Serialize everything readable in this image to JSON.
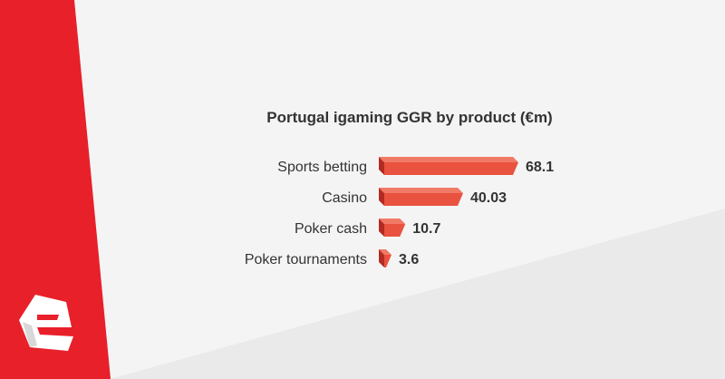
{
  "colors": {
    "accent": "#e8202a",
    "bar_front": "#e9523f",
    "bar_top": "#f17a66",
    "bar_side": "#b32a22",
    "background": "#f4f4f4",
    "background_panel": "#eaeaea",
    "text": "#333333"
  },
  "logo": {
    "icon": "e-letter-logo-icon"
  },
  "chart_data": {
    "type": "bar",
    "orientation": "horizontal",
    "title": "Portugal igaming GGR by product (€m)",
    "categories": [
      "Sports betting",
      "Casino",
      "Poker cash",
      "Poker tournaments"
    ],
    "values": [
      68.1,
      40.03,
      10.7,
      3.6
    ],
    "value_labels": [
      "68.1",
      "40.03",
      "10.7",
      "3.6"
    ],
    "xlim": [
      0,
      68.1
    ],
    "grid": false,
    "legend": "none"
  }
}
